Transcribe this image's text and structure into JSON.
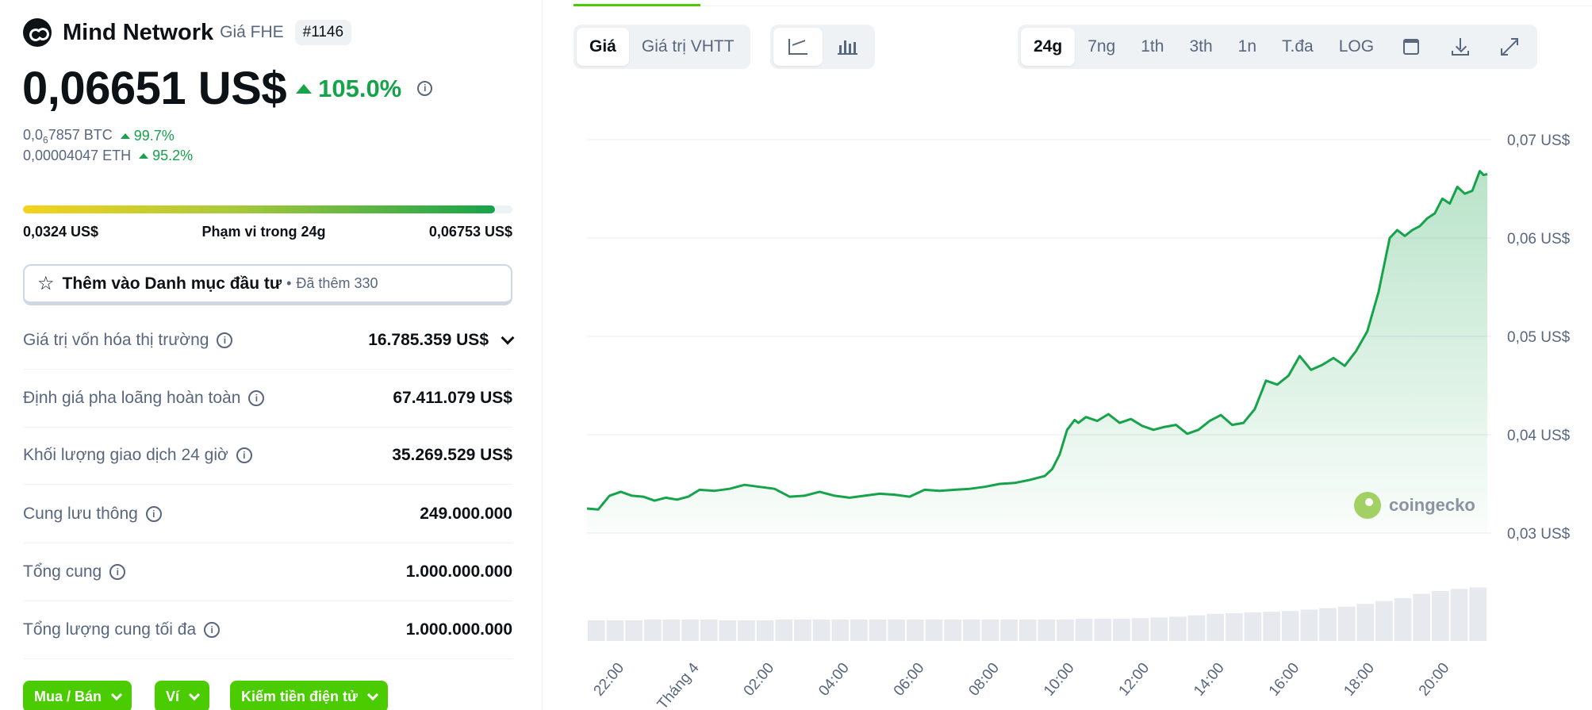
{
  "coin": {
    "name": "Mind Network",
    "symbol": "Giá FHE",
    "rank": "#1146",
    "price": "0,06651 US$",
    "change_24h": "105.0%",
    "btc_price_prefix": "0,0",
    "btc_price_sub": "6",
    "btc_price_suffix": "7857 BTC",
    "btc_change": "99.7%",
    "eth_price": "0,00004047 ETH",
    "eth_change": "95.2%"
  },
  "range": {
    "low": "0,0324 US$",
    "label": "Phạm vi trong 24g",
    "high": "0,06753 US$",
    "position_fraction": 0.965
  },
  "watchlist": {
    "label": "Thêm vào Danh mục đầu tư",
    "separator": "•",
    "count": "Đã thêm 330"
  },
  "stats": [
    {
      "label": "Giá trị vốn hóa thị trường",
      "value": "16.785.359 US$",
      "expandable": true
    },
    {
      "label": "Định giá pha loãng hoàn toàn",
      "value": "67.411.079 US$",
      "expandable": false
    },
    {
      "label": "Khối lượng giao dịch 24 giờ",
      "value": "35.269.529 US$",
      "expandable": false
    },
    {
      "label": "Cung lưu thông",
      "value": "249.000.000",
      "expandable": false
    },
    {
      "label": "Tổng cung",
      "value": "1.000.000.000",
      "expandable": false
    },
    {
      "label": "Tổng lượng cung tối đa",
      "value": "1.000.000.000",
      "expandable": false
    }
  ],
  "action_buttons": [
    "Mua / Bán",
    "Ví",
    "Kiếm tiền điện tử"
  ],
  "chart_tabs": {
    "metric": [
      "Giá",
      "Giá trị VHTT"
    ],
    "metric_active": "Giá",
    "chart_type_icons": [
      "line-chart-icon",
      "candlestick-icon"
    ],
    "ranges": [
      "24g",
      "7ng",
      "1th",
      "3th",
      "1n",
      "T.đa",
      "LOG"
    ],
    "range_active": "24g",
    "tool_icons": [
      "calendar-icon",
      "download-icon",
      "expand-icon"
    ]
  },
  "watermark": "coingecko",
  "colors": {
    "up": "#16a34a",
    "line": "#16a34a",
    "accent": "#4bcc00",
    "muted": "#58667e"
  },
  "chart_data": {
    "type": "line",
    "series_name": "",
    "ylim": [
      0.03,
      0.07
    ],
    "yticks": [
      "0,07 US$",
      "0,06 US$",
      "0,05 US$",
      "0,04 US$",
      "0,03 US$"
    ],
    "ytick_values": [
      0.07,
      0.06,
      0.05,
      0.04,
      0.03
    ],
    "xticks": [
      "22:00",
      "12. Tháng 4",
      "02:00",
      "04:00",
      "06:00",
      "08:00",
      "10:00",
      "12:00",
      "14:00",
      "16:00",
      "18:00",
      "20:00"
    ],
    "xtick_hours": [
      1,
      3,
      5,
      7,
      9,
      11,
      13,
      15,
      17,
      19,
      21,
      23
    ],
    "x_hours": [
      0,
      0.3,
      0.6,
      0.9,
      1.2,
      1.5,
      1.8,
      2.1,
      2.4,
      2.7,
      3.0,
      3.4,
      3.8,
      4.2,
      4.6,
      5.0,
      5.4,
      5.8,
      6.2,
      6.6,
      7.0,
      7.4,
      7.8,
      8.2,
      8.6,
      9.0,
      9.4,
      9.8,
      10.2,
      10.6,
      11.0,
      11.4,
      11.8,
      12.2,
      12.4,
      12.6,
      12.8,
      13.0,
      13.1,
      13.3,
      13.6,
      13.9,
      14.2,
      14.5,
      14.8,
      15.1,
      15.4,
      15.7,
      16.0,
      16.3,
      16.6,
      16.9,
      17.2,
      17.5,
      17.8,
      18.1,
      18.4,
      18.7,
      19.0,
      19.3,
      19.6,
      19.9,
      20.2,
      20.5,
      20.8,
      21.1,
      21.4,
      21.6,
      21.8,
      22.0,
      22.2,
      22.4,
      22.6,
      22.8,
      23.0,
      23.2,
      23.4,
      23.6,
      23.8,
      23.9,
      24.0
    ],
    "y_values": [
      0.0325,
      0.0324,
      0.0338,
      0.0342,
      0.0338,
      0.0337,
      0.0333,
      0.0336,
      0.0334,
      0.0337,
      0.0344,
      0.0343,
      0.0345,
      0.0349,
      0.0347,
      0.0345,
      0.0337,
      0.0338,
      0.0342,
      0.0338,
      0.0336,
      0.0338,
      0.034,
      0.0339,
      0.0337,
      0.0344,
      0.0343,
      0.0344,
      0.0345,
      0.0347,
      0.035,
      0.0351,
      0.0354,
      0.0358,
      0.0365,
      0.038,
      0.0405,
      0.0415,
      0.0412,
      0.0418,
      0.0414,
      0.0421,
      0.0412,
      0.0416,
      0.0409,
      0.0405,
      0.0408,
      0.041,
      0.0401,
      0.0405,
      0.0414,
      0.042,
      0.041,
      0.0412,
      0.0426,
      0.0455,
      0.0451,
      0.046,
      0.048,
      0.0466,
      0.0471,
      0.0478,
      0.047,
      0.0485,
      0.0505,
      0.0545,
      0.06,
      0.0608,
      0.0602,
      0.0608,
      0.0612,
      0.062,
      0.0625,
      0.064,
      0.0635,
      0.0652,
      0.0645,
      0.0648,
      0.0668,
      0.0664,
      0.0665
    ],
    "volume_values": [
      0.29,
      0.29,
      0.29,
      0.3,
      0.3,
      0.3,
      0.3,
      0.29,
      0.29,
      0.29,
      0.3,
      0.3,
      0.3,
      0.3,
      0.3,
      0.3,
      0.3,
      0.3,
      0.3,
      0.3,
      0.3,
      0.3,
      0.3,
      0.3,
      0.3,
      0.3,
      0.31,
      0.31,
      0.31,
      0.32,
      0.33,
      0.34,
      0.36,
      0.38,
      0.39,
      0.4,
      0.41,
      0.42,
      0.44,
      0.46,
      0.48,
      0.52,
      0.56,
      0.6,
      0.66,
      0.7,
      0.73,
      0.75
    ],
    "grid": true
  }
}
